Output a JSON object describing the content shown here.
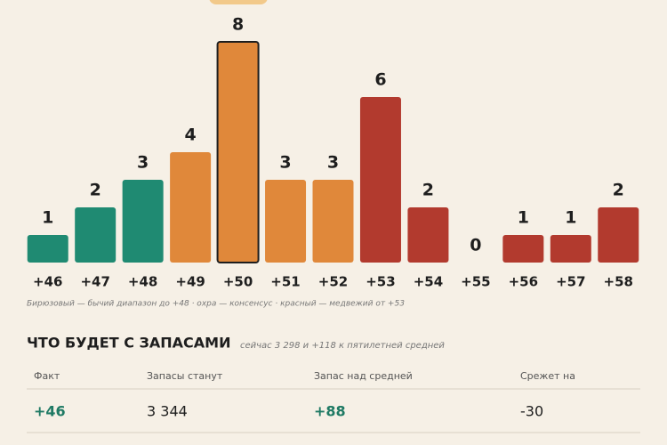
{
  "chart_data": {
    "type": "bar",
    "categories": [
      "+46",
      "+47",
      "+48",
      "+49",
      "+50",
      "+51",
      "+52",
      "+53",
      "+54",
      "+55",
      "+56",
      "+57",
      "+58"
    ],
    "values": [
      1,
      2,
      3,
      4,
      8,
      3,
      3,
      6,
      2,
      0,
      1,
      1,
      2
    ],
    "colors": [
      "#1f8a72",
      "#1f8a72",
      "#1f8a72",
      "#e0883a",
      "#e0883a",
      "#e0883a",
      "#e0883a",
      "#b23a2e",
      "#b23a2e",
      "#b23a2e",
      "#b23a2e",
      "#b23a2e",
      "#b23a2e"
    ],
    "highlight_category": "+50",
    "caption": "Бирюзовый — бычий диапазон до +48 · охра — консенсус · красный — медвежий от +53"
  },
  "section": {
    "title": "ЧТО БУДЕТ С ЗАПАСАМИ",
    "subtitle": "сейчас 3 298 и +118 к пятилетней средней"
  },
  "table": {
    "headers": [
      "Факт",
      "Запасы станут",
      "Запас над средней",
      "Срежет на"
    ],
    "rows": [
      [
        "+46",
        "3 344",
        "+88",
        "-30"
      ]
    ]
  }
}
